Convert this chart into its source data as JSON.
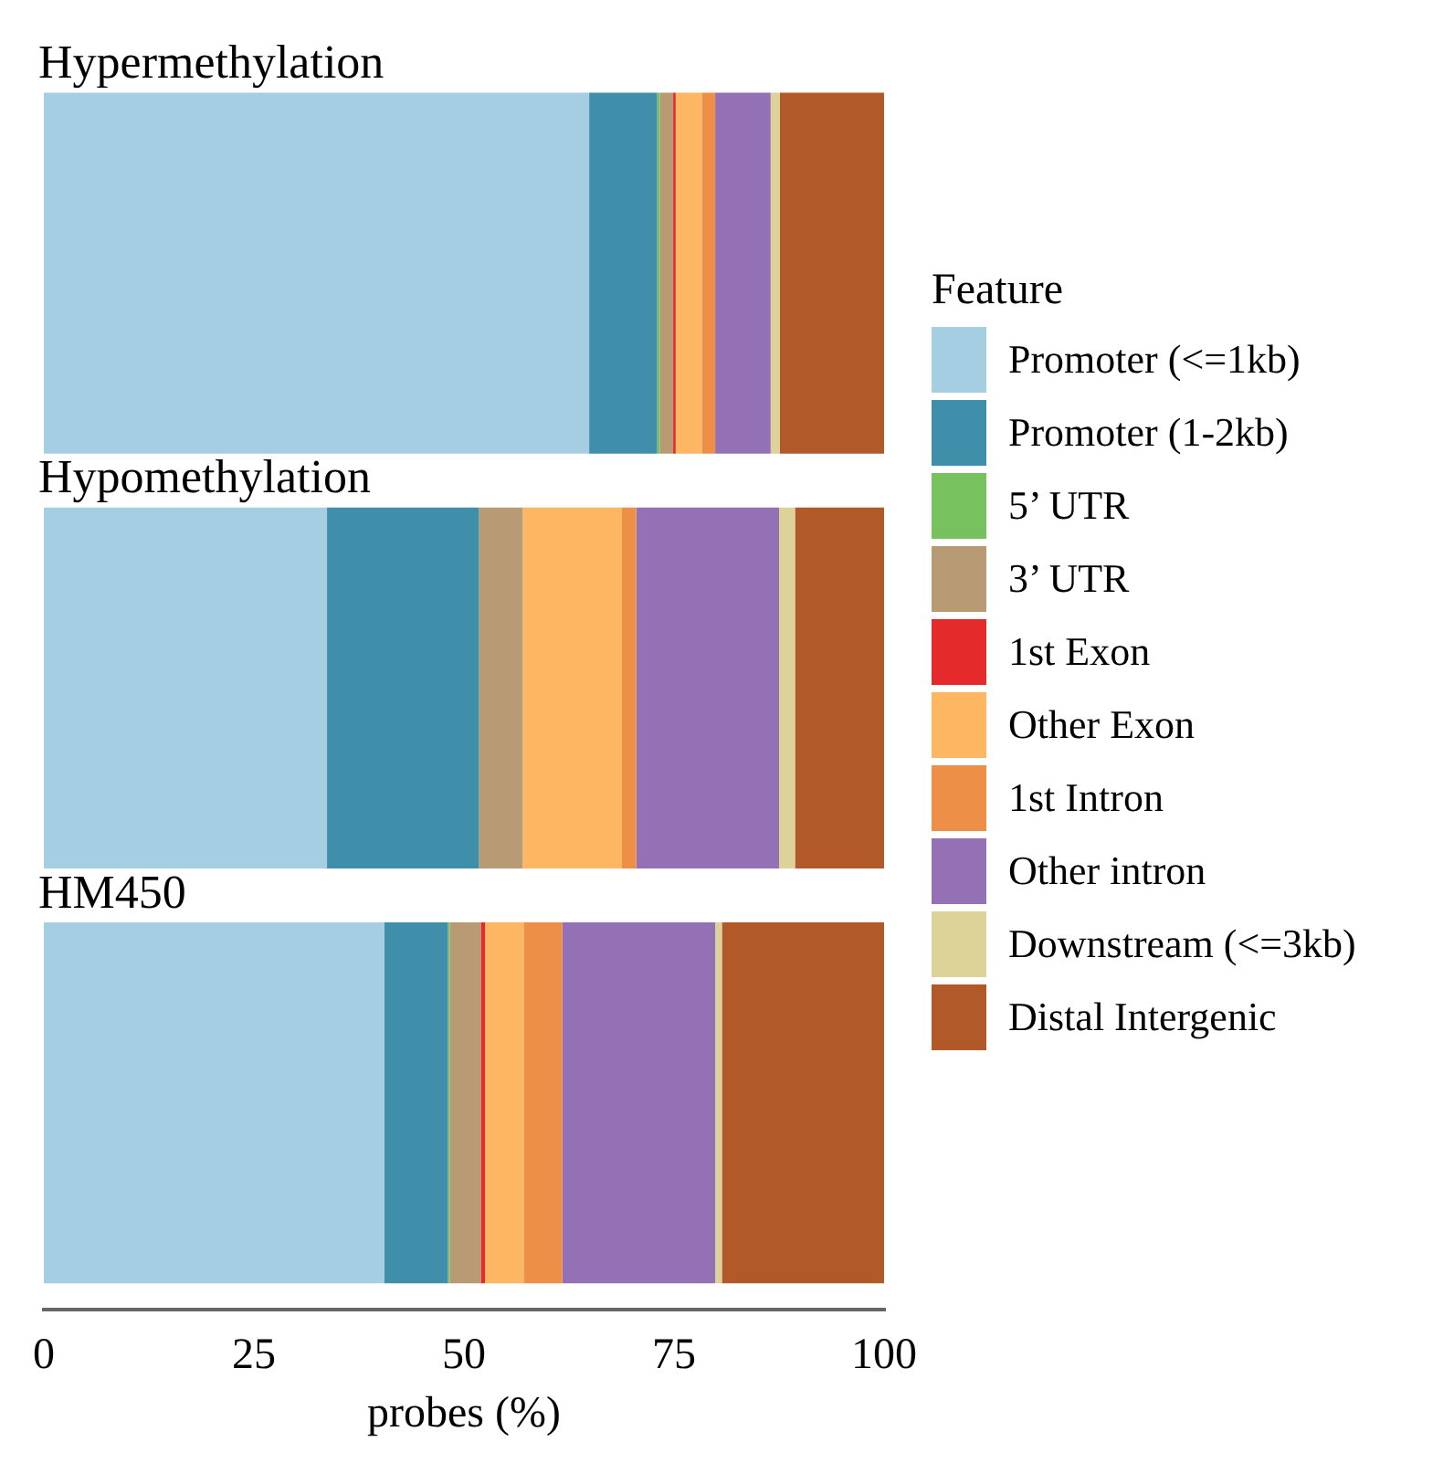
{
  "chart_data": {
    "type": "bar",
    "orientation": "horizontal",
    "stacked": true,
    "categories": [
      "Hypermethylation",
      "Hypomethylation",
      "HM450"
    ],
    "xlabel": "probes (%)",
    "legend_title": "Feature",
    "legend": "right",
    "grid": false,
    "xlim": [
      0,
      100
    ],
    "xticks": [
      0,
      25,
      50,
      75,
      100
    ],
    "series": [
      {
        "name": "Promoter (<=1kb)",
        "color": "#a6cee3",
        "values": [
          64.9,
          33.7,
          40.5
        ]
      },
      {
        "name": "Promoter (1-2kb)",
        "color": "#3f8fab",
        "values": [
          8.1,
          18.1,
          7.6
        ]
      },
      {
        "name": "5’ UTR",
        "color": "#77c15f",
        "values": [
          0.3,
          0,
          0.2
        ]
      },
      {
        "name": "3’ UTR",
        "color": "#b89b74",
        "values": [
          1.6,
          5.2,
          3.7
        ]
      },
      {
        "name": "1st Exon",
        "color": "#e52a2b",
        "values": [
          0.3,
          0,
          0.5
        ]
      },
      {
        "name": "Other Exon",
        "color": "#fdb762",
        "values": [
          3.1,
          11.8,
          4.6
        ]
      },
      {
        "name": "1st Intron",
        "color": "#ed8f47",
        "values": [
          1.6,
          1.7,
          4.6
        ]
      },
      {
        "name": "Other intron",
        "color": "#9471b4",
        "values": [
          6.6,
          17.0,
          18.2
        ]
      },
      {
        "name": "Downstream (<=3kb)",
        "color": "#ddd399",
        "values": [
          1.1,
          1.9,
          0.8
        ]
      },
      {
        "name": "Distal Intergenic",
        "color": "#b15928",
        "values": [
          12.4,
          10.6,
          19.4
        ]
      }
    ]
  }
}
